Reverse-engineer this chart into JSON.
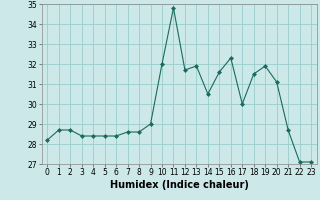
{
  "x": [
    0,
    1,
    2,
    3,
    4,
    5,
    6,
    7,
    8,
    9,
    10,
    11,
    12,
    13,
    14,
    15,
    16,
    17,
    18,
    19,
    20,
    21,
    22,
    23
  ],
  "y": [
    28.2,
    28.7,
    28.7,
    28.4,
    28.4,
    28.4,
    28.4,
    28.6,
    28.6,
    29.0,
    32.0,
    34.8,
    31.7,
    31.9,
    30.5,
    31.6,
    32.3,
    30.0,
    31.5,
    31.9,
    31.1,
    28.7,
    27.1,
    27.1
  ],
  "line_color": "#1a6b5a",
  "marker": "D",
  "marker_size": 2.0,
  "bg_color": "#cce8e8",
  "grid_color": "#99cccc",
  "xlabel": "Humidex (Indice chaleur)",
  "ylim": [
    27,
    35
  ],
  "xlim": [
    -0.5,
    23.5
  ],
  "yticks": [
    27,
    28,
    29,
    30,
    31,
    32,
    33,
    34,
    35
  ],
  "xticks": [
    0,
    1,
    2,
    3,
    4,
    5,
    6,
    7,
    8,
    9,
    10,
    11,
    12,
    13,
    14,
    15,
    16,
    17,
    18,
    19,
    20,
    21,
    22,
    23
  ],
  "tick_fontsize": 5.5,
  "label_fontsize": 7.0
}
